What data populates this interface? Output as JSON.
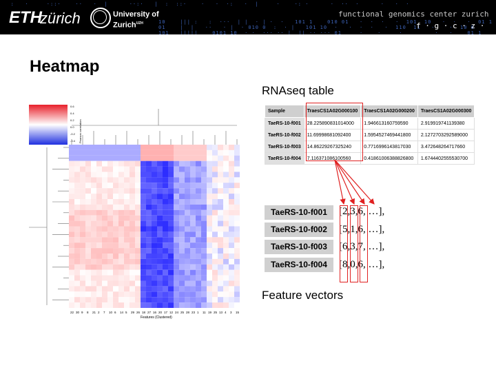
{
  "header": {
    "eth_logo_bold": "ETH",
    "eth_logo_rest": "zürich",
    "uzh_line1": "University of",
    "uzh_line2": "Zurich",
    "uzh_sup": "UZH",
    "fgcz_top": "functional genomics center zurich",
    "fgcz_bottom": "f · g · c · z ·"
  },
  "slide": {
    "title": "Heatmap",
    "rnaseq_title": "RNAseq table",
    "feature_title": "Feature vectors"
  },
  "heatmap": {
    "colorbar_labels": [
      "0.6",
      "0.4",
      "0.2",
      "0.0",
      "-0.2",
      "-0.4"
    ],
    "colorbar_axis": "Pearson correlation",
    "xlabel": "Features (Clustered)",
    "ylabel": "Genes (Clustered)",
    "col_labels": [
      "22",
      "30",
      "9",
      "8",
      "21",
      "2",
      "7",
      "10",
      "6",
      "14",
      "5",
      "29",
      "26",
      "18",
      "27",
      "16",
      "20",
      "17",
      "12",
      "24",
      "25",
      "28",
      "23",
      "1",
      "11",
      "19",
      "25",
      "13",
      "4",
      "3",
      "15"
    ],
    "row_labels": [
      "3",
      "27",
      "1",
      "7",
      "11",
      "6",
      "4",
      "2",
      "8",
      "5",
      "9",
      "28",
      "18",
      "10",
      "30",
      "12",
      "29",
      "20",
      "22",
      "25",
      "24",
      "14",
      "17",
      "13",
      "19",
      "26",
      "16",
      "21",
      "23",
      "15"
    ],
    "colors": {
      "positive": "#e8202a",
      "negative": "#2030e0",
      "neutral": "#ffffff"
    }
  },
  "rnaseq_table": {
    "headers": [
      "Sample",
      "TraesCS1A02G000100",
      "TraesCS1A02G000200",
      "TraesCS1A02G000300"
    ],
    "rows": [
      [
        "TaeRS-10-f001",
        "28.225890831014000",
        "1.946613160759590",
        "2.919919741139380"
      ],
      [
        "TaeRS-10-f002",
        "11.69998681092400",
        "1.5954527469441800",
        "2.1272703292589000"
      ],
      [
        "TaeRS-10-f003",
        "14.86229267325240",
        "0.7716996143817030",
        "3.472648264717660"
      ],
      [
        "TaeRS-10-f004",
        "7.116371086100560",
        "0.41861006388826800",
        "1.6744402555530700"
      ]
    ]
  },
  "feature_vectors": {
    "rows": [
      {
        "sample": "TaeRS-10-f001",
        "vector": "[2,3,6, …],"
      },
      {
        "sample": "TaeRS-10-f002",
        "vector": "[5,1,6, …],"
      },
      {
        "sample": "TaeRS-10-f003",
        "vector": "[6,3,7, …],"
      },
      {
        "sample": "TaeRS-10-f004",
        "vector": "[8,0,6, …],"
      }
    ]
  },
  "highlight_color": "#e02020"
}
